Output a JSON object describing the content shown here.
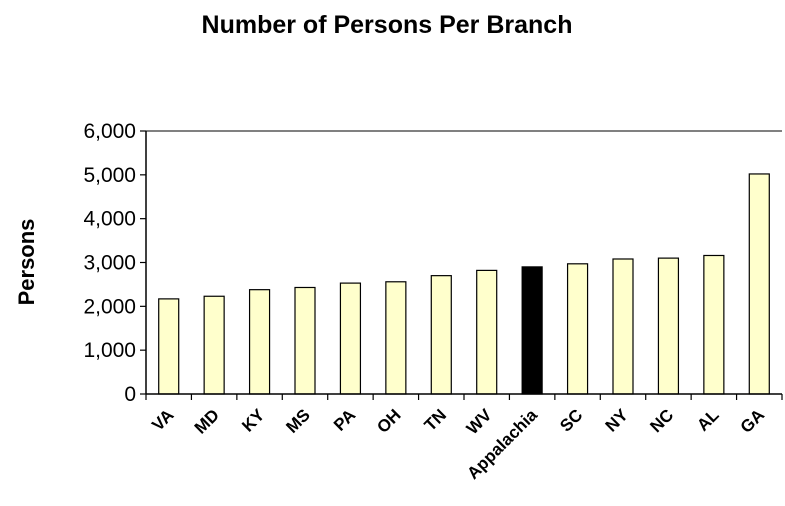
{
  "chart_data": {
    "type": "bar",
    "title": "Number of Persons Per Branch",
    "xlabel": "",
    "ylabel": "Persons",
    "ylim": [
      0,
      6000
    ],
    "yticks": [
      0,
      1000,
      2000,
      3000,
      4000,
      5000,
      6000
    ],
    "ytick_labels": [
      "0",
      "1,000",
      "2,000",
      "3,000",
      "4,000",
      "5,000",
      "6,000"
    ],
    "categories": [
      "VA",
      "MD",
      "KY",
      "MS",
      "PA",
      "OH",
      "TN",
      "WV",
      "Appalachia",
      "SC",
      "NY",
      "NC",
      "AL",
      "GA"
    ],
    "values": [
      2170,
      2230,
      2380,
      2430,
      2530,
      2560,
      2700,
      2820,
      2900,
      2970,
      3080,
      3100,
      3160,
      5020
    ],
    "bar_colors": [
      "#ffffcc",
      "#ffffcc",
      "#ffffcc",
      "#ffffcc",
      "#ffffcc",
      "#ffffcc",
      "#ffffcc",
      "#ffffcc",
      "#000000",
      "#ffffcc",
      "#ffffcc",
      "#ffffcc",
      "#ffffcc",
      "#ffffcc"
    ],
    "highlight_category": "Appalachia",
    "grid": false,
    "legend": "none"
  }
}
